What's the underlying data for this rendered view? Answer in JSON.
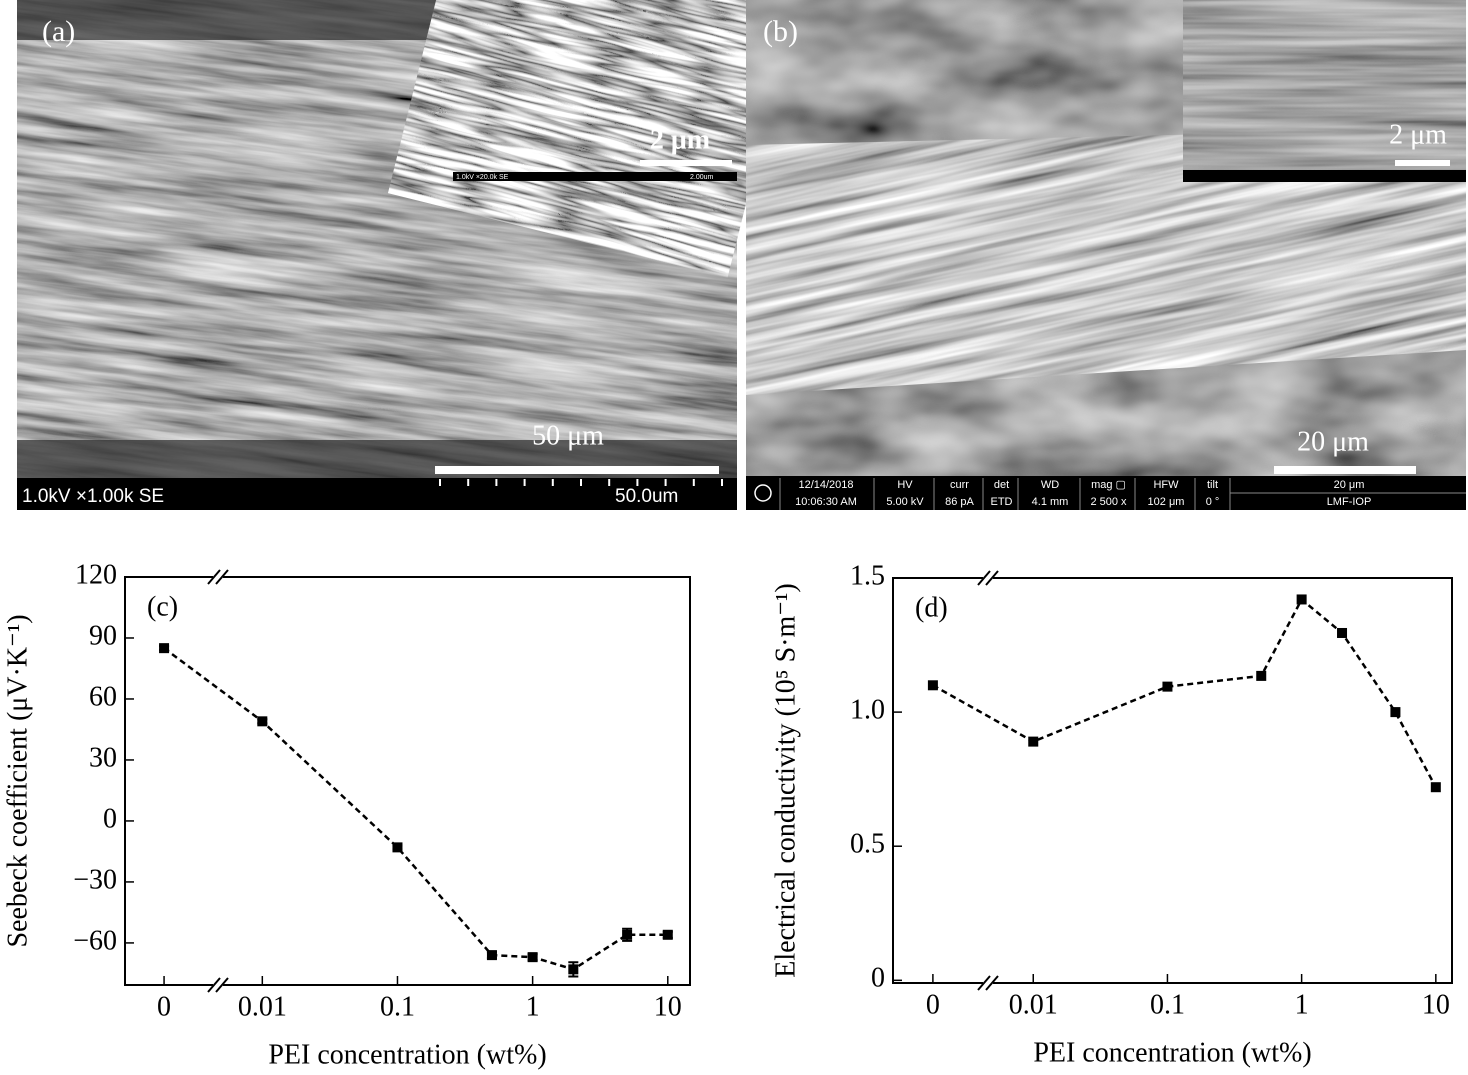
{
  "panels": [
    {
      "label": "(a)",
      "inset_scale": "2 μm",
      "inset_footer": [
        "1.0kV ×20.0k SE",
        "2.00um"
      ],
      "scale": "50 μm",
      "footer": [
        "1.0kV ×1.00k SE",
        "50.0um"
      ]
    },
    {
      "label": "(b)",
      "inset_scale": "2 μm",
      "scale": "20 μm",
      "info": [
        [
          "12/14/2018",
          "10:06:30 AM"
        ],
        [
          "HV",
          "5.00 kV"
        ],
        [
          "curr",
          "86 pA"
        ],
        [
          "det",
          "ETD"
        ],
        [
          "WD",
          "4.1 mm"
        ],
        [
          "mag ▢",
          "2 500 x"
        ],
        [
          "HFW",
          "102 μm"
        ],
        [
          "tilt",
          "0 °"
        ],
        [
          "20 μm",
          "LMF-IOP"
        ]
      ]
    }
  ],
  "chart_data": [
    {
      "type": "line",
      "panel_label": "(c)",
      "x_label": "PEI concentration (wt%)",
      "y_label": "Seebeck coefficient (μV·K⁻¹)",
      "x": [
        0,
        0.01,
        0.1,
        0.5,
        1,
        2,
        5,
        10
      ],
      "values": [
        85,
        49,
        -13,
        -66,
        -67,
        -73,
        -56,
        -56
      ],
      "errors": [
        1,
        1,
        1,
        1.5,
        1.5,
        3.5,
        3,
        1.5
      ],
      "x_log": true,
      "x_break": true,
      "xlim": [
        0.0047,
        14.6
      ],
      "xticks": [
        0,
        0.01,
        0.1,
        1,
        10
      ],
      "ylim": [
        -80.7,
        120
      ],
      "yticks": [
        120,
        90,
        60,
        30,
        0,
        {
          "value": -30,
          "label": "−30"
        },
        {
          "value": -60,
          "label": "−60"
        }
      ],
      "color": "#000000",
      "grid": false
    },
    {
      "type": "line",
      "panel_label": "(d)",
      "x_label": "PEI concentration (wt%)",
      "y_label": "Electrical conductivity (10⁵ S·m⁻¹)",
      "x": [
        0,
        0.01,
        0.1,
        0.5,
        1,
        2,
        5,
        10
      ],
      "values": [
        1.1,
        0.89,
        1.095,
        1.135,
        1.42,
        1.295,
        1.0,
        0.72
      ],
      "x_log": true,
      "x_break": true,
      "xlim": [
        0.0046,
        13.2
      ],
      "xticks": [
        0,
        0.01,
        0.1,
        1,
        10
      ],
      "ylim": [
        -0.01,
        1.5
      ],
      "yticks": [
        0,
        0.5,
        {
          "value": 1,
          "label": "1.0"
        },
        1.5
      ],
      "color": "#000000",
      "grid": false
    }
  ]
}
